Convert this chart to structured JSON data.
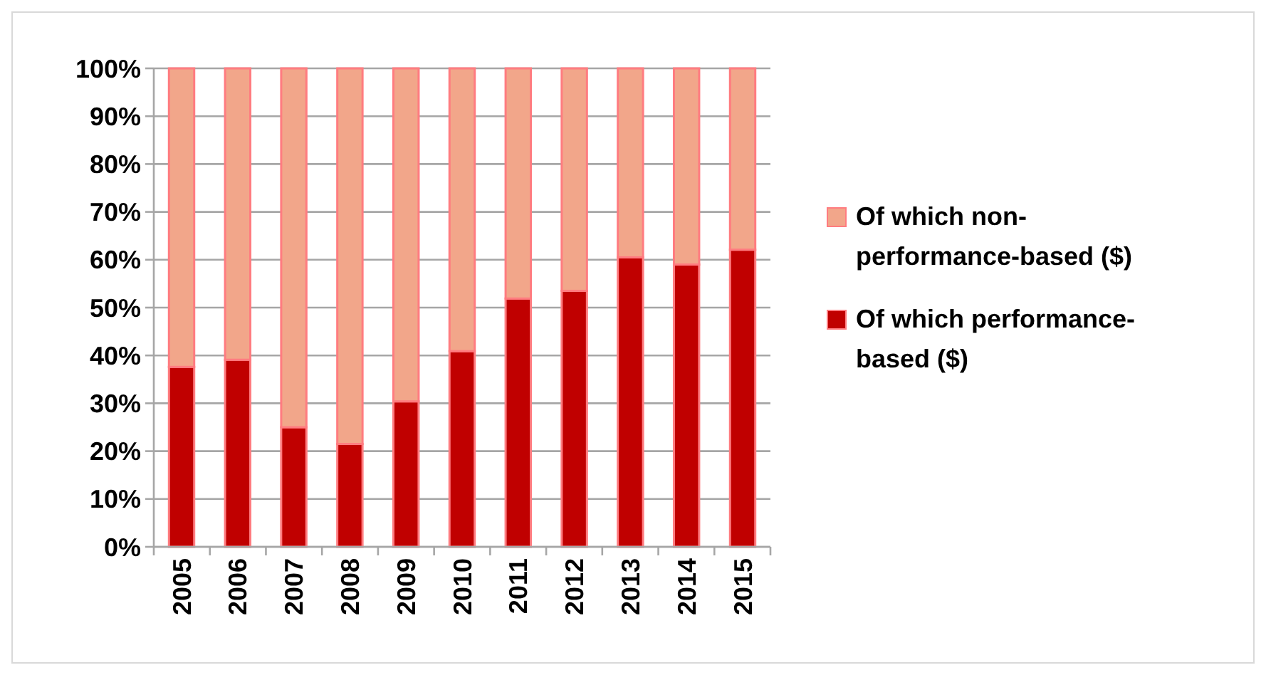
{
  "chart_data": {
    "type": "bar",
    "stacked": true,
    "categories": [
      "2005",
      "2006",
      "2007",
      "2008",
      "2009",
      "2010",
      "2011",
      "2012",
      "2013",
      "2014",
      "2015"
    ],
    "series": [
      {
        "name": "Of which performance-based ($)",
        "color": "#c00000",
        "values": [
          37.6,
          39.1,
          25.0,
          21.5,
          30.4,
          40.9,
          51.9,
          53.5,
          60.5,
          59.0,
          62.1
        ]
      },
      {
        "name": "Of which non-performance-based ($)",
        "color": "#f2a68a",
        "values": [
          62.4,
          60.9,
          75.0,
          78.5,
          69.6,
          59.1,
          48.1,
          46.5,
          39.5,
          41.0,
          37.9
        ]
      }
    ],
    "ylim": [
      0,
      100
    ],
    "yticks": [
      {
        "value": 0,
        "label": "0%"
      },
      {
        "value": 10,
        "label": "10%"
      },
      {
        "value": 20,
        "label": "20%"
      },
      {
        "value": 30,
        "label": "30%"
      },
      {
        "value": 40,
        "label": "40%"
      },
      {
        "value": 50,
        "label": "50%"
      },
      {
        "value": 60,
        "label": "60%"
      },
      {
        "value": 70,
        "label": "70%"
      },
      {
        "value": 80,
        "label": "80%"
      },
      {
        "value": 90,
        "label": "90%"
      },
      {
        "value": 100,
        "label": "100%"
      }
    ],
    "grid": "y",
    "legend": "right"
  }
}
